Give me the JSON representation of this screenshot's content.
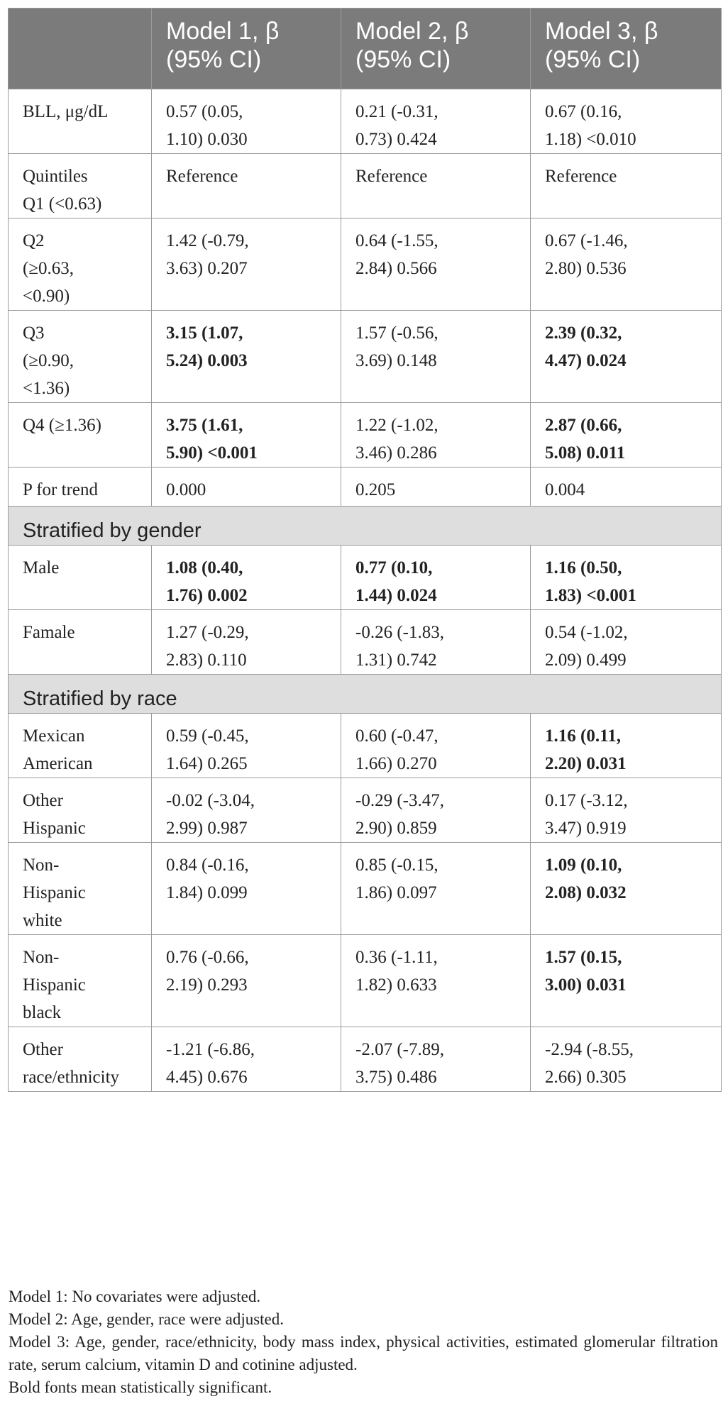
{
  "table": {
    "headers": [
      "",
      [
        "Model 1, β",
        "(95% CI)"
      ],
      [
        "Model 2, β",
        "(95% CI)"
      ],
      [
        "Model 3, β",
        "(95% CI)"
      ]
    ],
    "rows": [
      {
        "kind": "data",
        "label": [
          "BLL, μg/dL"
        ],
        "cells": [
          {
            "lines": [
              "0.57 (0.05,",
              "1.10) 0.030"
            ],
            "bold": false
          },
          {
            "lines": [
              "0.21 (-0.31,",
              "0.73) 0.424"
            ],
            "bold": false
          },
          {
            "lines": [
              "0.67 (0.16,",
              "1.18) <0.010"
            ],
            "bold": false
          }
        ]
      },
      {
        "kind": "data",
        "label": [
          "Quintiles",
          "Q1 (<0.63)"
        ],
        "cells": [
          {
            "lines": [
              "Reference"
            ],
            "bold": false
          },
          {
            "lines": [
              "Reference"
            ],
            "bold": false
          },
          {
            "lines": [
              "Reference"
            ],
            "bold": false
          }
        ]
      },
      {
        "kind": "data",
        "label": [
          "Q2",
          "(≥0.63,",
          "<0.90)"
        ],
        "cells": [
          {
            "lines": [
              "1.42 (-0.79,",
              "3.63) 0.207"
            ],
            "bold": false
          },
          {
            "lines": [
              "0.64 (-1.55,",
              "2.84) 0.566"
            ],
            "bold": false
          },
          {
            "lines": [
              "0.67 (-1.46,",
              "2.80) 0.536"
            ],
            "bold": false
          }
        ]
      },
      {
        "kind": "data",
        "label": [
          "Q3",
          "(≥0.90,",
          "<1.36)"
        ],
        "cells": [
          {
            "lines": [
              "3.15 (1.07,",
              "5.24) 0.003"
            ],
            "bold": true
          },
          {
            "lines": [
              "1.57 (-0.56,",
              "3.69) 0.148"
            ],
            "bold": false
          },
          {
            "lines": [
              "2.39 (0.32,",
              "4.47) 0.024"
            ],
            "bold": true
          }
        ]
      },
      {
        "kind": "data",
        "label": [
          "Q4 (≥1.36)"
        ],
        "cells": [
          {
            "lines": [
              "3.75 (1.61,",
              "5.90) <0.001"
            ],
            "bold": true
          },
          {
            "lines": [
              "1.22 (-1.02,",
              "3.46) 0.286"
            ],
            "bold": false
          },
          {
            "lines": [
              "2.87 (0.66,",
              "5.08) 0.011"
            ],
            "bold": true
          }
        ]
      },
      {
        "kind": "data",
        "label": [
          "P for trend"
        ],
        "cells": [
          {
            "lines": [
              "0.000"
            ],
            "bold": false
          },
          {
            "lines": [
              "0.205"
            ],
            "bold": false
          },
          {
            "lines": [
              "0.004"
            ],
            "bold": false
          }
        ]
      },
      {
        "kind": "section",
        "title": "Stratified by gender"
      },
      {
        "kind": "data",
        "label": [
          "Male"
        ],
        "cells": [
          {
            "lines": [
              "1.08 (0.40,",
              "1.76) 0.002"
            ],
            "bold": true
          },
          {
            "lines": [
              "0.77 (0.10,",
              "1.44) 0.024"
            ],
            "bold": true
          },
          {
            "lines": [
              "1.16 (0.50,",
              "1.83) <0.001"
            ],
            "bold": true
          }
        ]
      },
      {
        "kind": "data",
        "label": [
          "Famale"
        ],
        "cells": [
          {
            "lines": [
              "1.27 (-0.29,",
              "2.83) 0.110"
            ],
            "bold": false
          },
          {
            "lines": [
              "-0.26 (-1.83,",
              "1.31) 0.742"
            ],
            "bold": false
          },
          {
            "lines": [
              "0.54 (-1.02,",
              "2.09) 0.499"
            ],
            "bold": false
          }
        ]
      },
      {
        "kind": "section",
        "title": "Stratified by race"
      },
      {
        "kind": "data",
        "label": [
          "Mexican",
          "American"
        ],
        "cells": [
          {
            "lines": [
              "0.59 (-0.45,",
              "1.64) 0.265"
            ],
            "bold": false
          },
          {
            "lines": [
              "0.60 (-0.47,",
              "1.66) 0.270"
            ],
            "bold": false
          },
          {
            "lines": [
              "1.16 (0.11,",
              "2.20) 0.031"
            ],
            "bold": true
          }
        ]
      },
      {
        "kind": "data",
        "label": [
          "Other",
          "Hispanic"
        ],
        "cells": [
          {
            "lines": [
              "-0.02 (-3.04,",
              "2.99) 0.987"
            ],
            "bold": false
          },
          {
            "lines": [
              "-0.29 (-3.47,",
              "2.90) 0.859"
            ],
            "bold": false
          },
          {
            "lines": [
              "0.17 (-3.12,",
              "3.47) 0.919"
            ],
            "bold": false
          }
        ]
      },
      {
        "kind": "data",
        "label": [
          "Non-",
          "Hispanic",
          "white"
        ],
        "cells": [
          {
            "lines": [
              "0.84 (-0.16,",
              "1.84) 0.099"
            ],
            "bold": false
          },
          {
            "lines": [
              "0.85 (-0.15,",
              "1.86) 0.097"
            ],
            "bold": false
          },
          {
            "lines": [
              "1.09 (0.10,",
              "2.08) 0.032"
            ],
            "bold": true
          }
        ]
      },
      {
        "kind": "data",
        "label": [
          "Non-",
          "Hispanic",
          "black"
        ],
        "cells": [
          {
            "lines": [
              "0.76 (-0.66,",
              "2.19) 0.293"
            ],
            "bold": false
          },
          {
            "lines": [
              "0.36 (-1.11,",
              "1.82) 0.633"
            ],
            "bold": false
          },
          {
            "lines": [
              "1.57 (0.15,",
              "3.00) 0.031"
            ],
            "bold": true
          }
        ]
      },
      {
        "kind": "data",
        "label": [
          "Other",
          "race/ethnicity"
        ],
        "cells": [
          {
            "lines": [
              "-1.21 (-6.86,",
              "4.45) 0.676"
            ],
            "bold": false
          },
          {
            "lines": [
              "-2.07 (-7.89,",
              "3.75) 0.486"
            ],
            "bold": false
          },
          {
            "lines": [
              "-2.94 (-8.55,",
              "2.66) 0.305"
            ],
            "bold": false
          }
        ]
      }
    ]
  },
  "notes": [
    "Model 1: No covariates were adjusted.",
    "Model 2: Age, gender, race were adjusted.",
    "Model 3: Age, gender, race/ethnicity, body mass index, physical activities, estimated glomerular filtration rate, serum calcium, vitamin D and cotinine adjusted.",
    "Bold fonts mean statistically significant."
  ]
}
